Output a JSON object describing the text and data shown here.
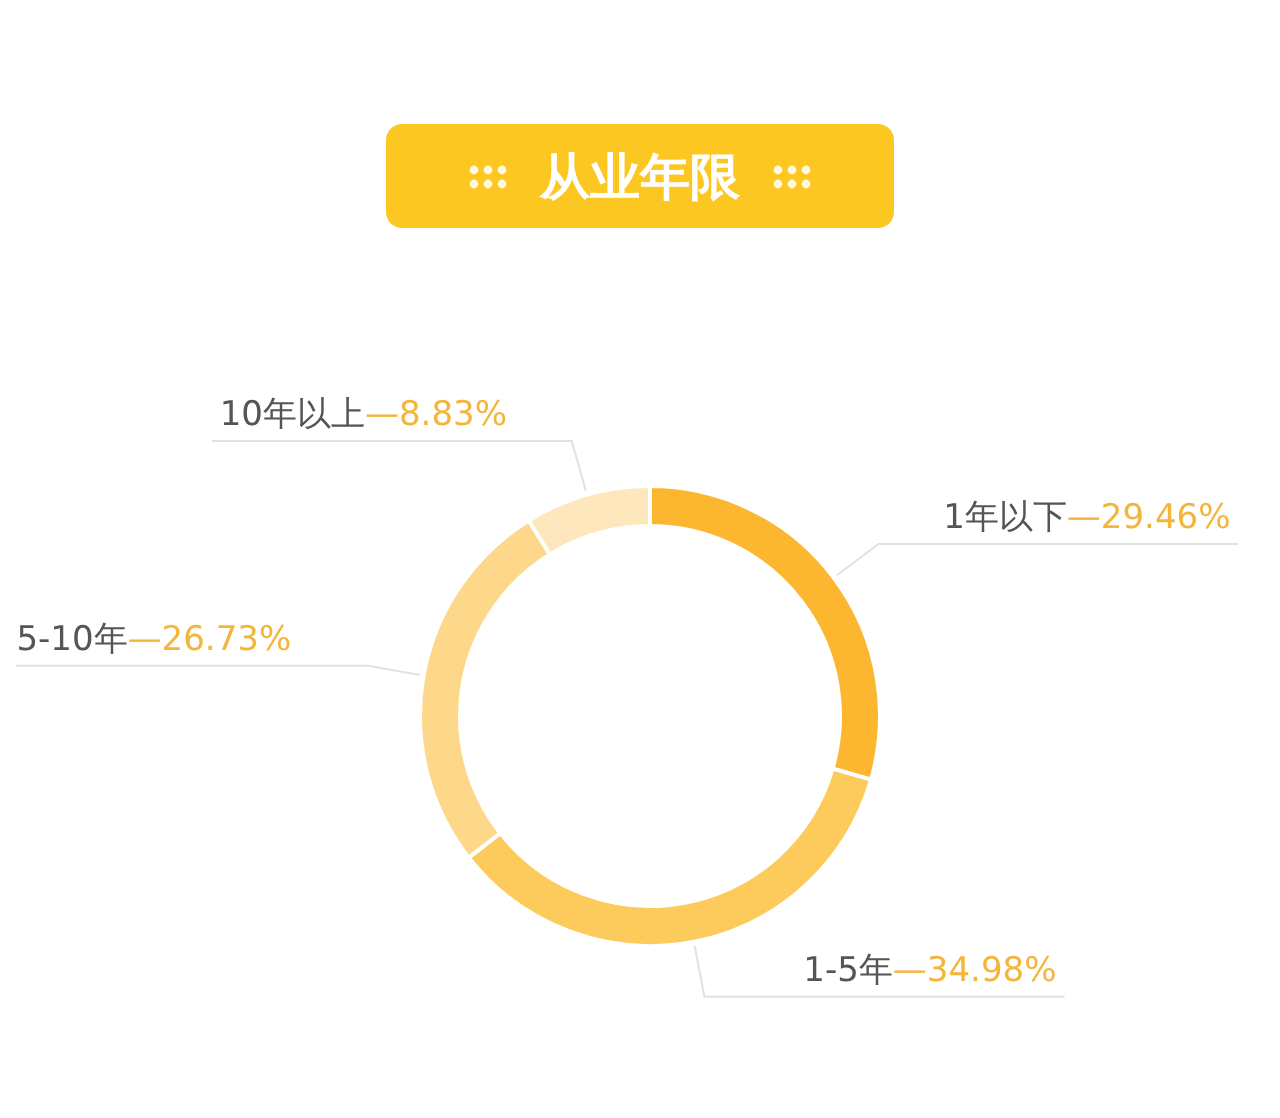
{
  "chart_data": {
    "type": "donut",
    "title": "从业年限",
    "categories": [
      "1年以下",
      "1-5年",
      "5-10年",
      "10年以上"
    ],
    "values": [
      29.46,
      34.98,
      26.73,
      8.83
    ],
    "value_labels": [
      "—29.46%",
      "—34.98%",
      "—26.73%",
      "—8.83%"
    ],
    "colors": [
      "#fdb62f",
      "#fdca5c",
      "#fed88a",
      "#fee6bd"
    ]
  }
}
